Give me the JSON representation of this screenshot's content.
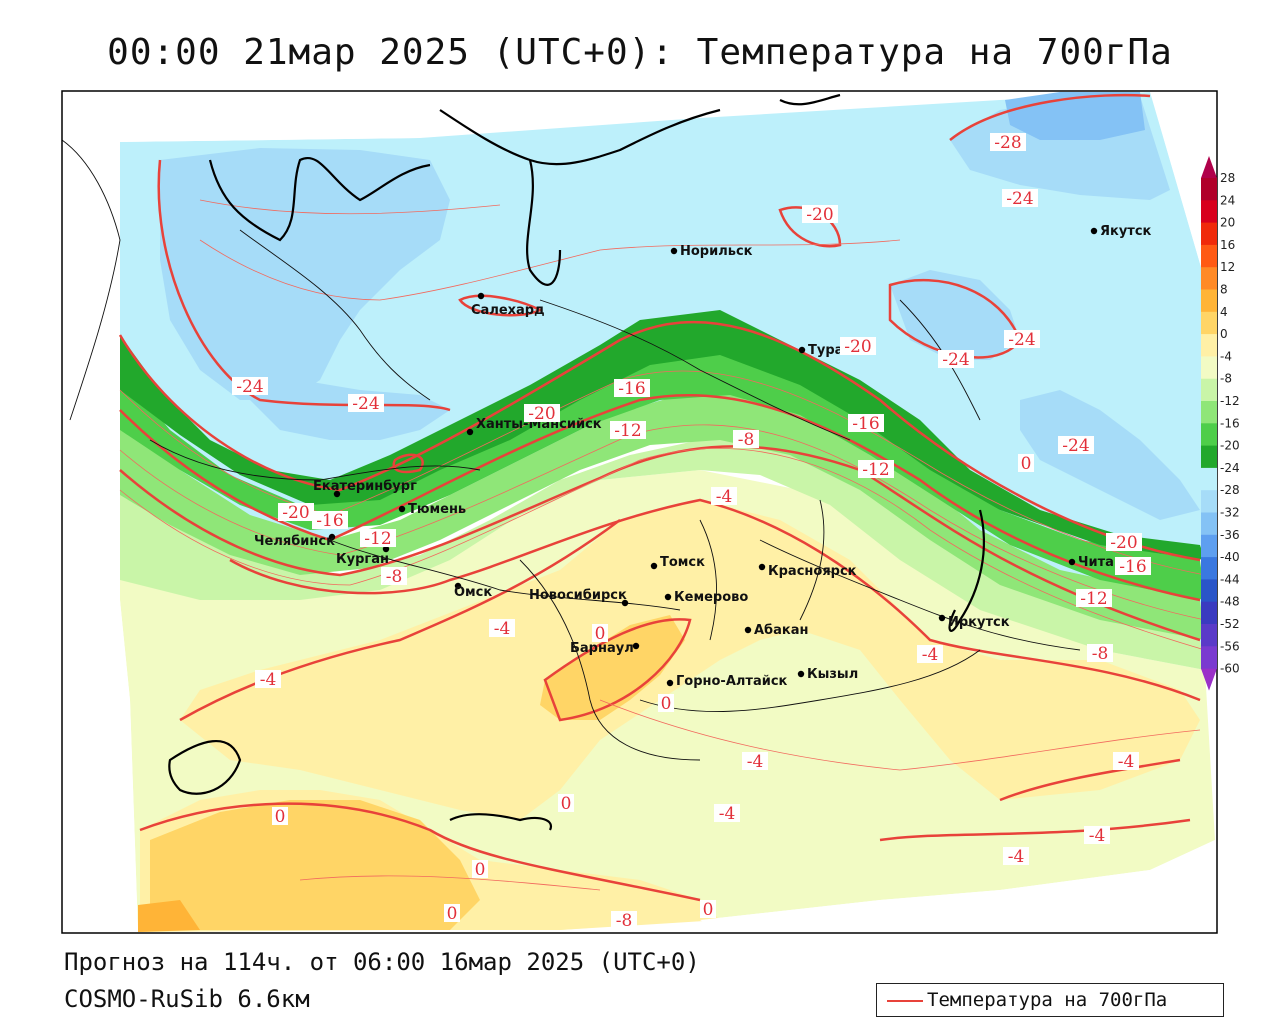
{
  "title": "00:00 21мар 2025 (UTC+0): Температура на 700гПа",
  "footer": {
    "forecast": "Прогноз на 114ч. от 06:00 16мар 2025 (UTC+0)",
    "model": "COSMO-RuSib 6.6км"
  },
  "legend": {
    "label": "Температура на 700гПа",
    "line_color": "#e8423a"
  },
  "colorbar": {
    "labels": [
      "28",
      "24",
      "20",
      "16",
      "12",
      "8",
      "4",
      "0",
      "-4",
      "-8",
      "-12",
      "-16",
      "-20",
      "-24",
      "-28",
      "-32",
      "-36",
      "-40",
      "-44",
      "-48",
      "-52",
      "-56",
      "-60"
    ],
    "colors": [
      "#b0002a",
      "#d8001c",
      "#f02a0a",
      "#ff5a14",
      "#ff8a26",
      "#ffb437",
      "#ffd566",
      "#fff0a6",
      "#f2fbc4",
      "#c9f5a8",
      "#8fe678",
      "#4ece4a",
      "#22a82c",
      "#bdf0fb",
      "#a6dcf8",
      "#84c2f5",
      "#5e9ff0",
      "#3a78e0",
      "#2a55c8",
      "#3a3ac0",
      "#5a3ac8",
      "#7a3ad0",
      "#9a30c8"
    ]
  },
  "cities": [
    {
      "name": "Норильск"
    },
    {
      "name": "Якутск"
    },
    {
      "name": "Салехард"
    },
    {
      "name": "Тура"
    },
    {
      "name": "Ханты-Мансийск"
    },
    {
      "name": "Екатеринбург"
    },
    {
      "name": "Тюмень"
    },
    {
      "name": "Челябинск"
    },
    {
      "name": "Курган"
    },
    {
      "name": "Омск"
    },
    {
      "name": "Томск"
    },
    {
      "name": "Красноярск"
    },
    {
      "name": "Новосибирск"
    },
    {
      "name": "Кемерово"
    },
    {
      "name": "Абакан"
    },
    {
      "name": "Барнаул"
    },
    {
      "name": "Иркутск"
    },
    {
      "name": "Чита"
    },
    {
      "name": "Горно-Алтайск"
    },
    {
      "name": "Кызыл"
    }
  ],
  "contour_labels": [
    "-28",
    "-24",
    "-20",
    "-24",
    "-24",
    "-24",
    "-20",
    "-24",
    "-16",
    "-20",
    "-12",
    "-16",
    "-8",
    "-12",
    "-4",
    "-20",
    "-16",
    "-20",
    "-16",
    "-12",
    "-12",
    "-8",
    "-8",
    "-24",
    "-4",
    "-4",
    "0",
    "0",
    "-4",
    "-4",
    "-4",
    "0",
    "-4",
    "-4",
    "-4",
    "0",
    "0",
    "0",
    "0",
    "-8",
    "0"
  ]
}
